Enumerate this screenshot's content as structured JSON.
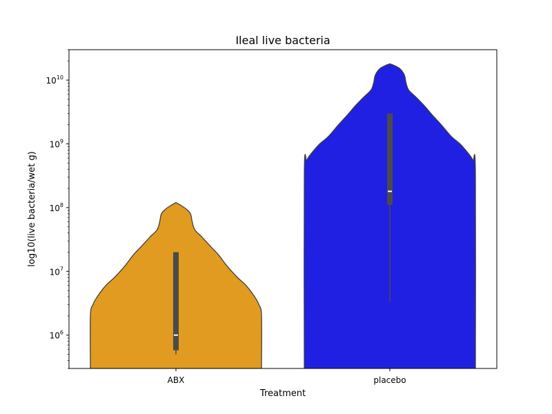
{
  "chart_data": {
    "type": "violin",
    "title": "Ileal live bacteria",
    "xlabel": "Treatment",
    "ylabel": "log10(live bacteria/wet g)",
    "yscale": "log",
    "ylim": [
      300000,
      30000000000
    ],
    "yticks": [
      {
        "value": 1000000,
        "base": "10",
        "exp": "6"
      },
      {
        "value": 10000000,
        "base": "10",
        "exp": "7"
      },
      {
        "value": 100000000,
        "base": "10",
        "exp": "8"
      },
      {
        "value": 1000000000,
        "base": "10",
        "exp": "9"
      },
      {
        "value": 10000000000,
        "base": "10",
        "exp": "10"
      }
    ],
    "categories": [
      "ABX",
      "placebo"
    ],
    "colors": {
      "ABX": "#e09b20",
      "placebo": "#2020e3",
      "box": "#4a4a4a",
      "median": "#ffffff"
    },
    "violins": [
      {
        "category": "ABX",
        "profile": [
          [
            120000000,
            0.0
          ],
          [
            110000000,
            0.05
          ],
          [
            95000000,
            0.12
          ],
          [
            80000000,
            0.17
          ],
          [
            60000000,
            0.19
          ],
          [
            45000000,
            0.22
          ],
          [
            35000000,
            0.3
          ],
          [
            25000000,
            0.4
          ],
          [
            18000000,
            0.5
          ],
          [
            12000000,
            0.6
          ],
          [
            8000000,
            0.72
          ],
          [
            6000000,
            0.82
          ],
          [
            4000000,
            0.92
          ],
          [
            3000000,
            0.97
          ],
          [
            2000000,
            1.0
          ],
          [
            300000,
            1.0
          ]
        ],
        "whisker_low": 500000,
        "whisker_high": 20000000,
        "q1": 580000,
        "q3": 20000000,
        "median": 1000000
      },
      {
        "category": "placebo",
        "profile": [
          [
            18000000000,
            0.0
          ],
          [
            17000000000,
            0.05
          ],
          [
            15000000000,
            0.12
          ],
          [
            12000000000,
            0.17
          ],
          [
            9000000000,
            0.19
          ],
          [
            7000000000,
            0.22
          ],
          [
            5500000000,
            0.3
          ],
          [
            4000000000,
            0.4
          ],
          [
            2800000000,
            0.5
          ],
          [
            2000000000,
            0.6
          ],
          [
            1300000000,
            0.72
          ],
          [
            1000000000,
            0.82
          ],
          [
            700000000,
            0.92
          ],
          [
            550000000,
            0.97
          ],
          [
            350000000,
            1.0
          ],
          [
            300000,
            1.0
          ]
        ],
        "whisker_low": 3300000,
        "whisker_high": 3000000000,
        "q1": 110000000,
        "q3": 3000000000,
        "median": 180000000
      }
    ],
    "grid": false,
    "legend": false
  }
}
